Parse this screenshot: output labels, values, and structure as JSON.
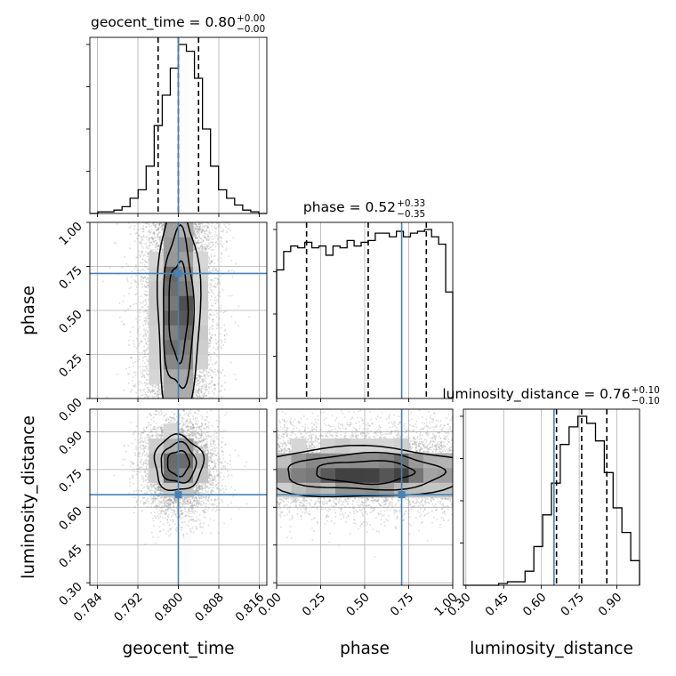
{
  "chart_data": {
    "type": "corner",
    "parameters": [
      {
        "name": "geocent_time",
        "range": [
          0.7825,
          0.8175
        ],
        "ticks": [
          "0.784",
          "0.792",
          "0.800",
          "0.808",
          "0.816"
        ],
        "tick_values": [
          0.784,
          0.792,
          0.8,
          0.808,
          0.816
        ],
        "truth": 0.8,
        "median": 0.8,
        "lower": 0.796,
        "upper": 0.804,
        "title": "geocent_time = ",
        "value": "0.80",
        "plus": "+0.00",
        "minus": "−0.00"
      },
      {
        "name": "phase",
        "range": [
          0.0,
          1.0
        ],
        "ticks": [
          "0.00",
          "0.25",
          "0.50",
          "0.75",
          "1.00"
        ],
        "tick_values": [
          0.0,
          0.25,
          0.5,
          0.75,
          1.0
        ],
        "truth": 0.71,
        "median": 0.52,
        "lower": 0.17,
        "upper": 0.85,
        "title": "phase = ",
        "value": "0.52",
        "plus": "+0.33",
        "minus": "−0.35"
      },
      {
        "name": "luminosity_distance",
        "range": [
          0.29,
          0.99
        ],
        "ticks": [
          "0.30",
          "0.45",
          "0.60",
          "0.75",
          "0.90"
        ],
        "tick_values": [
          0.3,
          0.45,
          0.6,
          0.75,
          0.9
        ],
        "truth": 0.65,
        "median": 0.76,
        "lower": 0.66,
        "upper": 0.86,
        "title": "luminosity_distance = ",
        "value": "0.76",
        "plus": "+0.10",
        "minus": "−0.10"
      }
    ],
    "histograms": {
      "geocent_time": [
        0,
        1,
        1,
        2,
        4,
        9,
        14,
        28,
        52,
        70,
        86,
        100,
        96,
        80,
        50,
        28,
        14,
        9,
        5,
        2,
        1,
        0
      ],
      "phase": [
        70,
        80,
        83,
        82,
        85,
        82,
        83,
        78,
        83,
        82,
        86,
        83,
        85,
        86,
        90,
        90,
        88,
        91,
        88,
        90,
        91,
        92,
        88,
        84,
        58
      ],
      "luminosity_distance": [
        0,
        0,
        0,
        0,
        1,
        2,
        2,
        8,
        22,
        40,
        58,
        80,
        90,
        96,
        92,
        82,
        64,
        44,
        30,
        14
      ]
    },
    "pairs": [
      {
        "x": "geocent_time",
        "y": "phase"
      },
      {
        "x": "geocent_time",
        "y": "luminosity_distance"
      },
      {
        "x": "phase",
        "y": "luminosity_distance"
      }
    ],
    "truth_color": "#4682b4",
    "grid": true
  }
}
